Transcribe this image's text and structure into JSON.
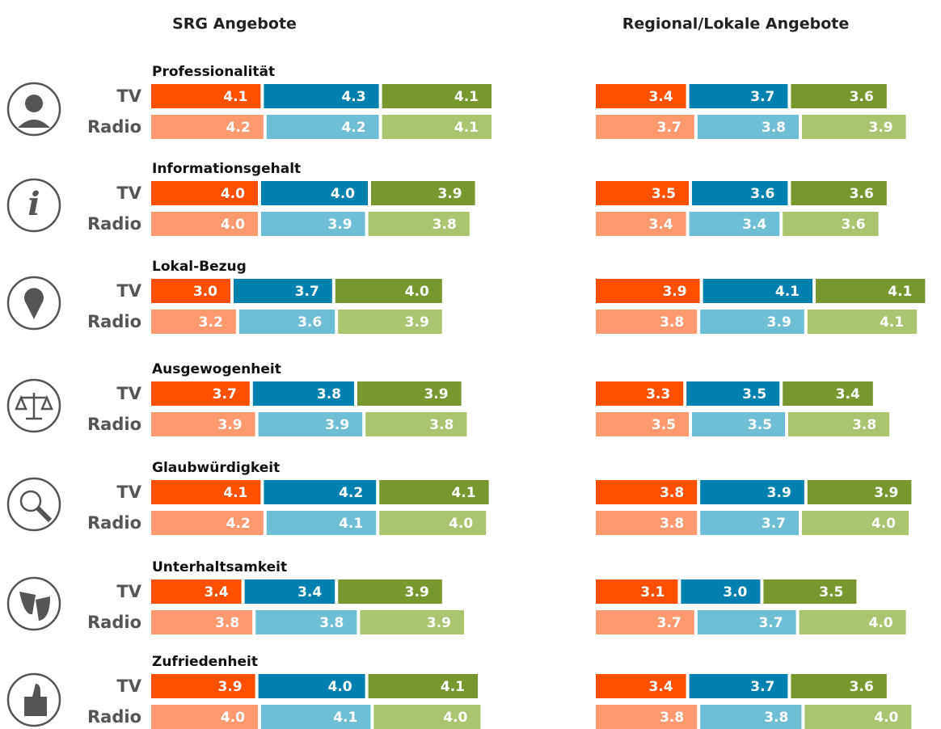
{
  "chart_data": [
    {
      "type": "bar",
      "stacked": true,
      "title": "SRG Angebote",
      "categories": [
        "Professionalität",
        "Informationsgehalt",
        "Lokal-Bezug",
        "Ausgewogenheit",
        "Glaubwürdigkeit",
        "Unterhaltsamkeit",
        "Zufriedenheit"
      ],
      "rows": [
        {
          "name": "TV",
          "series": [
            {
              "color": "#ff5000",
              "values": [
                4.1,
                4.0,
                3.0,
                3.7,
                4.1,
                3.4,
                3.9
              ],
              "value_labels": [
                "4.1",
                "4.0",
                "3.0",
                "3.7",
                "4.1",
                "3.4",
                "3.9"
              ]
            },
            {
              "color": "#0080ae",
              "values": [
                4.3,
                4.0,
                3.7,
                3.8,
                4.2,
                3.4,
                4.0
              ],
              "value_labels": [
                "4.3",
                "4.0",
                "3.7",
                "3.8",
                "4.2",
                "3.4",
                "4.0"
              ]
            },
            {
              "color": "#78982f",
              "values": [
                4.1,
                3.9,
                4.0,
                3.9,
                4.1,
                3.9,
                4.1
              ],
              "value_labels": [
                "4.1",
                "3.9",
                "4.0",
                "3.9",
                "4.1",
                "3.9",
                "4.1"
              ]
            }
          ]
        },
        {
          "name": "Radio",
          "series": [
            {
              "color": "#ff9a6e",
              "values": [
                4.2,
                4.0,
                3.2,
                3.9,
                4.2,
                3.8,
                4.0
              ],
              "value_labels": [
                "4.2",
                "4.0",
                "3.2",
                "3.9",
                "4.2",
                "3.8",
                "4.0"
              ]
            },
            {
              "color": "#6ebfd6",
              "values": [
                4.2,
                3.9,
                3.6,
                3.9,
                4.1,
                3.8,
                4.1
              ],
              "value_labels": [
                "4.2",
                "3.9",
                "3.6",
                "3.9",
                "4.1",
                "3.8",
                "4.1"
              ]
            },
            {
              "color": "#abc46f",
              "values": [
                4.1,
                3.8,
                3.9,
                3.8,
                4.0,
                3.9,
                4.0
              ],
              "value_labels": [
                "4.1",
                "3.8",
                "3.9",
                "3.8",
                "4.0",
                "3.9",
                "4.0"
              ]
            }
          ]
        }
      ]
    },
    {
      "type": "bar",
      "stacked": true,
      "title": "Regional/Lokale Angebote",
      "rows": [
        {
          "series": [
            {
              "color": "#ff5000",
              "values": [
                3.4,
                3.5,
                3.9,
                3.3,
                3.8,
                3.1,
                3.4
              ],
              "value_labels": [
                "3.4",
                "3.5",
                "3.9",
                "3.3",
                "3.8",
                "3.1",
                "3.4"
              ]
            },
            {
              "color": "#0080ae",
              "values": [
                3.7,
                3.6,
                4.1,
                3.5,
                3.9,
                3.0,
                3.7
              ],
              "value_labels": [
                "3.7",
                "3.6",
                "4.1",
                "3.5",
                "3.9",
                "3.0",
                "3.7"
              ]
            },
            {
              "color": "#78982f",
              "values": [
                3.6,
                3.6,
                4.1,
                3.4,
                3.9,
                3.5,
                3.6
              ],
              "value_labels": [
                "3.6",
                "3.6",
                "4.1",
                "3.4",
                "3.9",
                "3.5",
                "3.6"
              ]
            }
          ]
        },
        {
          "series": [
            {
              "color": "#ff9a6e",
              "values": [
                3.7,
                3.4,
                3.8,
                3.5,
                3.8,
                3.7,
                3.8
              ],
              "value_labels": [
                "3.7",
                "3.4",
                "3.8",
                "3.5",
                "3.8",
                "3.7",
                "3.8"
              ]
            },
            {
              "color": "#6ebfd6",
              "values": [
                3.8,
                3.4,
                3.9,
                3.5,
                3.7,
                3.7,
                3.8
              ],
              "value_labels": [
                "3.8",
                "3.4",
                "3.9",
                "3.5",
                "3.7",
                "3.7",
                "3.8"
              ]
            },
            {
              "color": "#abc46f",
              "values": [
                3.9,
                3.6,
                4.1,
                3.8,
                4.0,
                4.0,
                4.0
              ],
              "value_labels": [
                "3.9",
                "3.6",
                "4.1",
                "3.8",
                "4.0",
                "4.0",
                "4.0"
              ]
            }
          ]
        }
      ]
    }
  ]
}
